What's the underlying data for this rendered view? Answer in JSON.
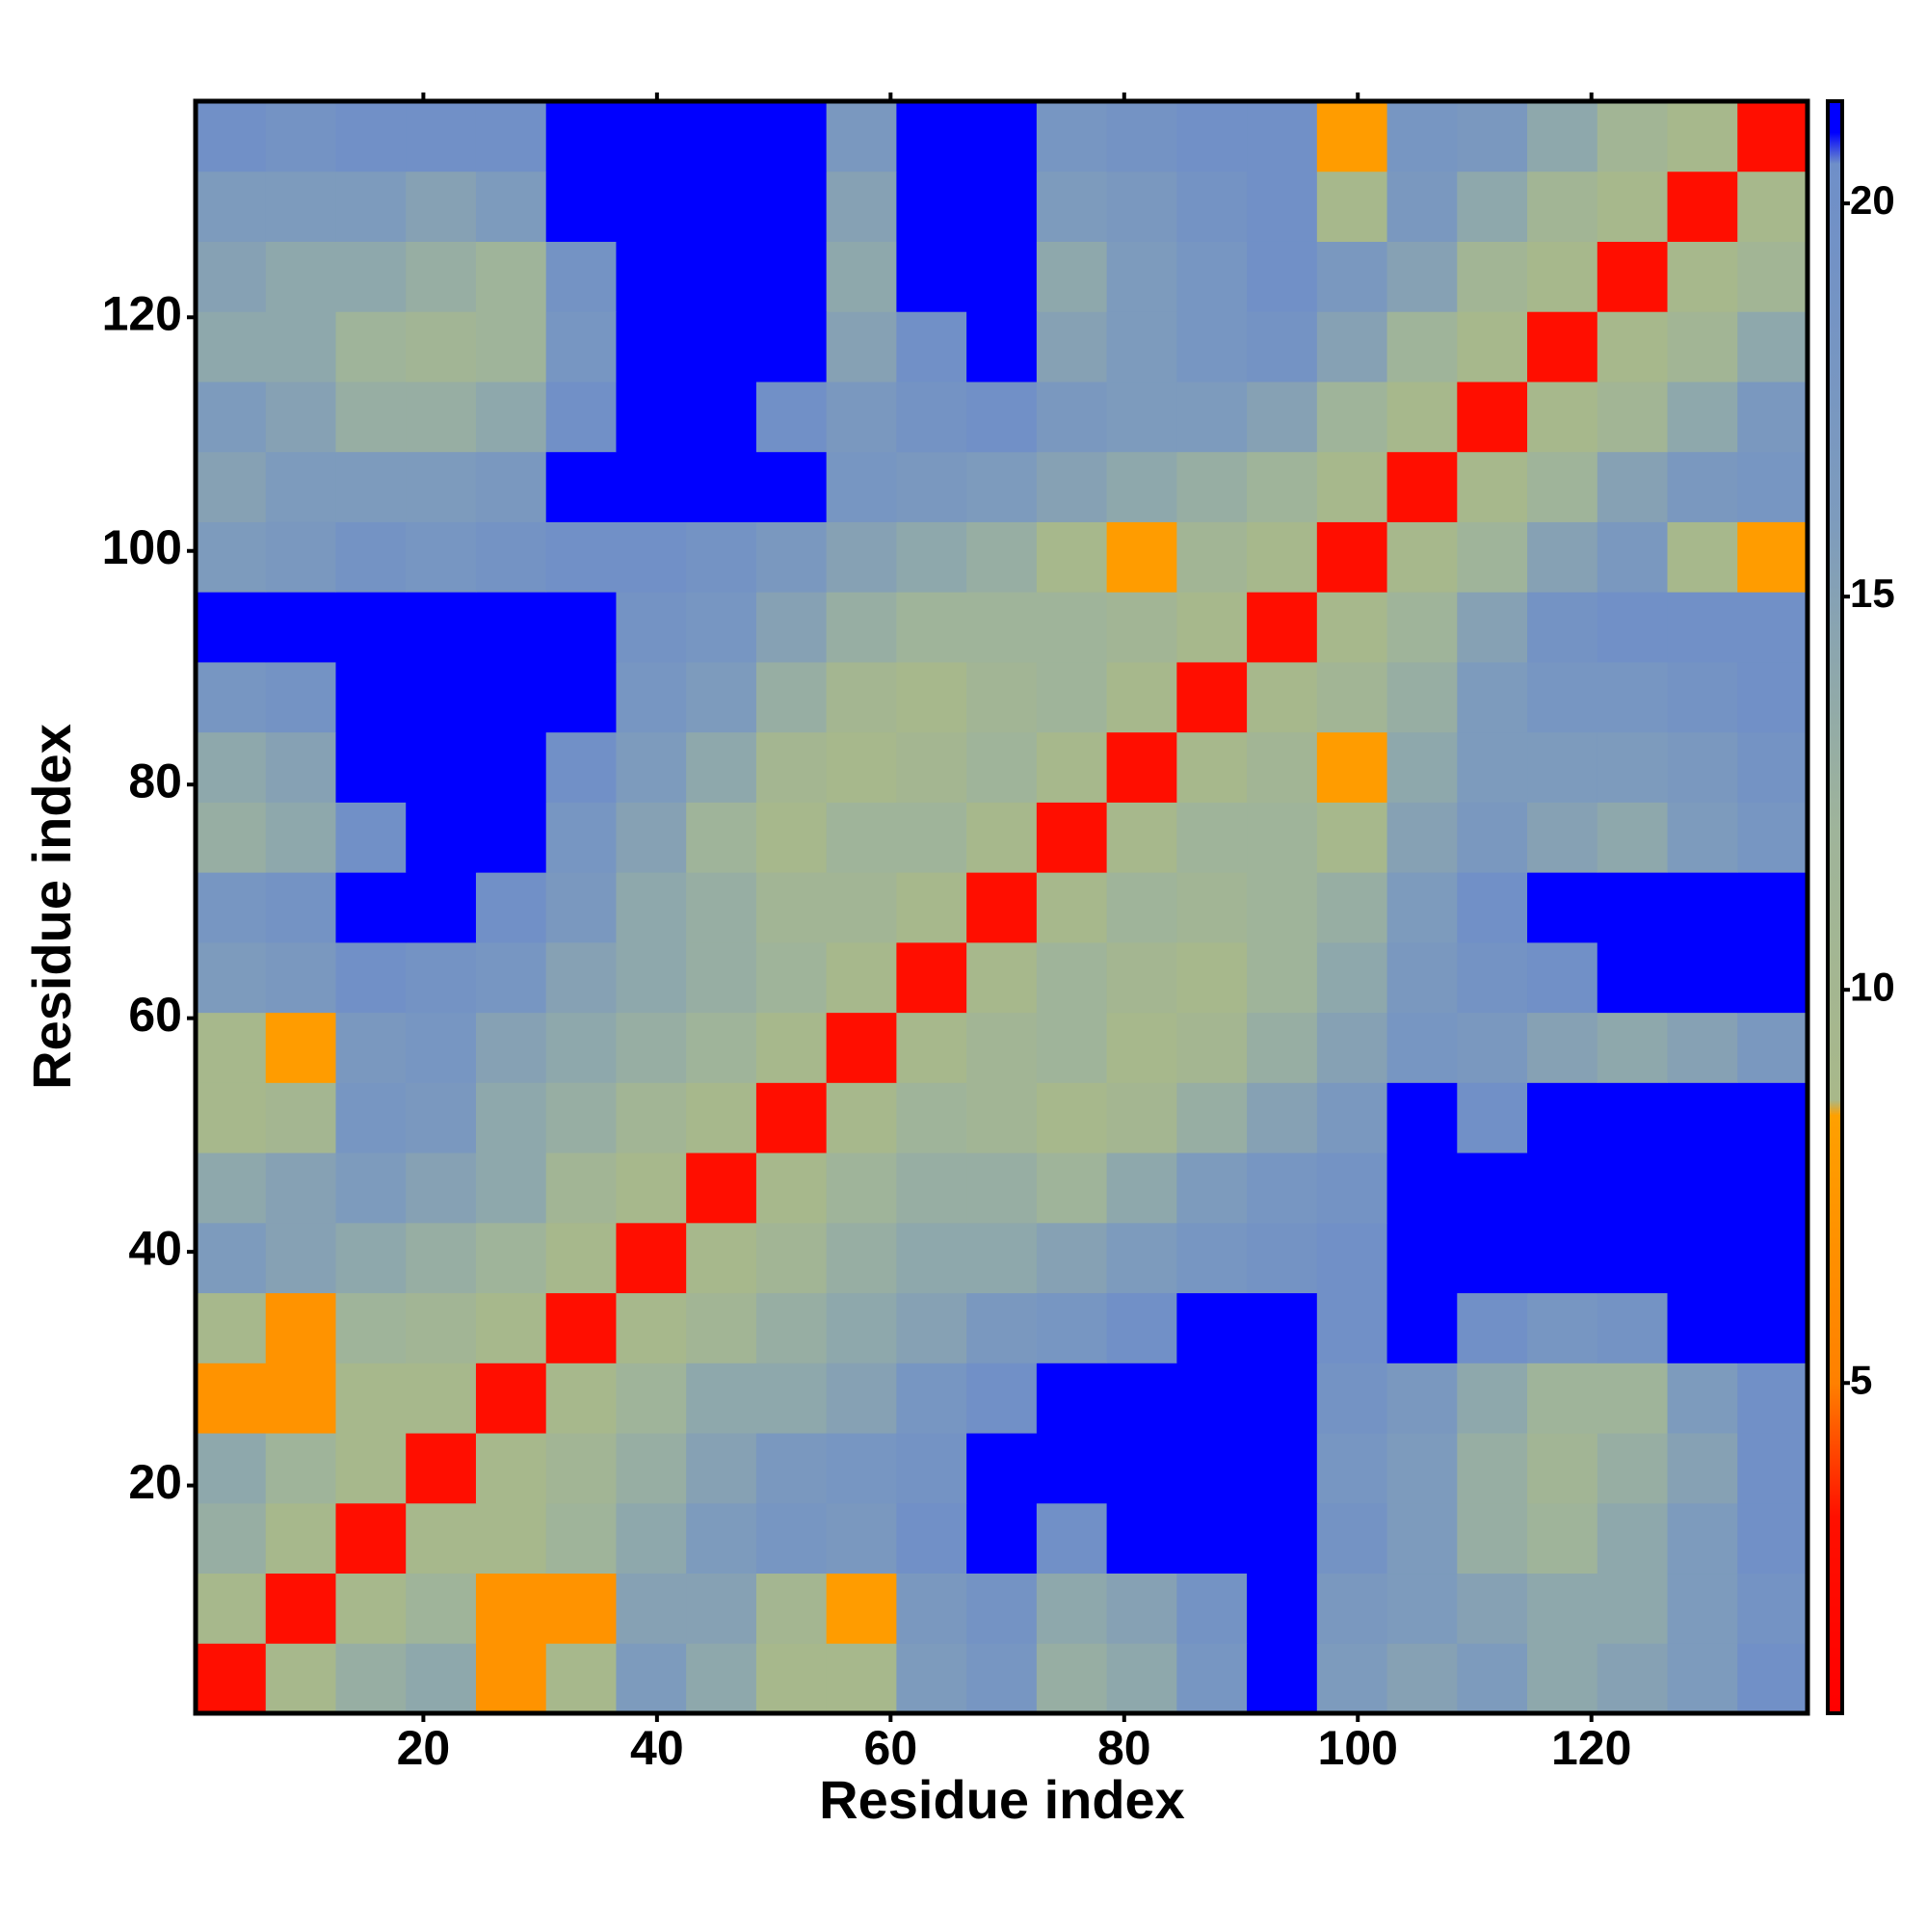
{
  "chart_data": {
    "type": "heatmap",
    "xlabel": "Residue index",
    "ylabel": "Residue index",
    "xlim": [
      0.5,
      138.5
    ],
    "ylim": [
      0.5,
      138.5
    ],
    "xticks": [
      20,
      40,
      60,
      80,
      100,
      120
    ],
    "yticks": [
      20,
      40,
      60,
      80,
      100,
      120
    ],
    "xbins": [
      0.5,
      6.5,
      12.5,
      18.5,
      24.5,
      30.5,
      36.5,
      42.5,
      48.5,
      54.5,
      60.5,
      66.5,
      72.5,
      78.5,
      84.5,
      90.5,
      96.5,
      102.5,
      108.5,
      114.5,
      120.5,
      126.5,
      132.5,
      138.5
    ],
    "ybins": [
      0.5,
      6.5,
      12.5,
      18.5,
      24.5,
      30.5,
      36.5,
      42.5,
      48.5,
      54.5,
      60.5,
      66.5,
      72.5,
      78.5,
      84.5,
      90.5,
      96.5,
      102.5,
      108.5,
      114.5,
      120.5,
      126.5,
      132.5,
      138.5
    ],
    "z": [
      [
        3,
        9,
        13,
        14,
        7,
        9,
        16,
        14,
        9,
        9,
        16,
        18,
        13,
        14,
        18,
        21,
        16,
        15,
        16,
        14,
        15,
        16,
        20
      ],
      [
        9,
        3,
        9,
        12,
        7,
        7,
        15,
        15,
        10,
        8,
        17,
        19,
        14,
        15,
        19,
        21,
        17,
        16,
        15,
        14,
        14,
        16,
        19
      ],
      [
        13,
        9,
        3,
        9,
        9,
        12,
        14,
        16,
        18,
        17,
        20,
        21,
        20,
        21,
        21,
        21,
        19,
        16,
        13,
        12,
        14,
        16,
        20
      ],
      [
        14,
        12,
        9,
        3,
        9,
        11,
        13,
        15,
        17,
        18,
        19,
        21,
        21,
        21,
        21,
        21,
        18,
        16,
        13,
        11,
        13,
        15,
        20
      ],
      [
        7,
        7,
        9,
        9,
        3,
        9,
        12,
        14,
        14,
        15,
        18,
        20,
        21,
        21,
        21,
        21,
        19,
        17,
        14,
        12,
        12,
        16,
        20
      ],
      [
        9,
        7,
        12,
        11,
        9,
        3,
        9,
        11,
        13,
        14,
        15,
        17,
        18,
        20,
        21,
        21,
        20,
        21,
        20,
        18,
        19,
        21,
        21
      ],
      [
        16,
        15,
        14,
        13,
        12,
        9,
        3,
        9,
        11,
        13,
        14,
        14,
        15,
        16,
        18,
        19,
        20,
        21,
        21,
        21,
        21,
        21,
        21
      ],
      [
        14,
        15,
        16,
        15,
        14,
        11,
        9,
        3,
        9,
        12,
        13,
        13,
        12,
        14,
        16,
        18,
        19,
        21,
        21,
        21,
        21,
        21,
        21
      ],
      [
        9,
        10,
        18,
        17,
        14,
        13,
        11,
        9,
        3,
        9,
        12,
        11,
        9,
        10,
        13,
        15,
        17,
        21,
        20,
        21,
        21,
        21,
        21
      ],
      [
        9,
        8,
        17,
        18,
        15,
        14,
        13,
        12,
        9,
        3,
        9,
        11,
        12,
        9,
        10,
        13,
        15,
        18,
        17,
        15,
        14,
        15,
        17
      ],
      [
        16,
        17,
        20,
        19,
        18,
        15,
        14,
        13,
        12,
        9,
        3,
        9,
        12,
        10,
        9,
        12,
        14,
        17,
        19,
        20,
        21,
        21,
        21
      ],
      [
        18,
        19,
        21,
        21,
        20,
        17,
        14,
        13,
        11,
        11,
        9,
        3,
        9,
        12,
        11,
        12,
        13,
        16,
        20,
        21,
        21,
        21,
        21
      ],
      [
        13,
        14,
        20,
        21,
        21,
        18,
        15,
        12,
        9,
        12,
        12,
        9,
        3,
        9,
        12,
        12,
        9,
        15,
        17,
        15,
        14,
        16,
        18
      ],
      [
        14,
        15,
        21,
        21,
        21,
        20,
        16,
        14,
        10,
        9,
        10,
        12,
        9,
        3,
        9,
        11,
        8,
        14,
        16,
        16,
        16,
        17,
        19
      ],
      [
        18,
        19,
        21,
        21,
        21,
        21,
        18,
        16,
        13,
        10,
        9,
        11,
        12,
        9,
        3,
        9,
        11,
        13,
        16,
        18,
        18,
        19,
        20
      ],
      [
        21,
        21,
        21,
        21,
        21,
        21,
        19,
        18,
        15,
        13,
        12,
        12,
        12,
        11,
        9,
        3,
        9,
        12,
        15,
        19,
        20,
        20,
        20
      ],
      [
        16,
        17,
        19,
        18,
        19,
        20,
        20,
        19,
        17,
        15,
        14,
        13,
        9,
        8,
        11,
        9,
        3,
        9,
        12,
        15,
        17,
        9,
        8
      ],
      [
        15,
        16,
        16,
        16,
        17,
        21,
        21,
        21,
        21,
        18,
        17,
        16,
        15,
        14,
        13,
        12,
        9,
        3,
        9,
        12,
        15,
        17,
        18
      ],
      [
        16,
        15,
        13,
        13,
        14,
        20,
        21,
        21,
        20,
        17,
        19,
        20,
        17,
        16,
        16,
        15,
        12,
        9,
        3,
        9,
        11,
        14,
        17
      ],
      [
        14,
        14,
        12,
        11,
        12,
        18,
        21,
        21,
        21,
        15,
        20,
        21,
        15,
        16,
        18,
        19,
        15,
        12,
        9,
        3,
        9,
        11,
        14
      ],
      [
        15,
        14,
        14,
        13,
        12,
        19,
        21,
        21,
        21,
        14,
        21,
        21,
        14,
        16,
        18,
        20,
        17,
        15,
        11,
        9,
        3,
        9,
        11
      ],
      [
        16,
        16,
        16,
        15,
        16,
        21,
        21,
        21,
        21,
        15,
        21,
        21,
        16,
        17,
        19,
        20,
        9,
        17,
        14,
        11,
        9,
        3,
        9
      ],
      [
        20,
        19,
        20,
        20,
        20,
        21,
        21,
        21,
        21,
        17,
        21,
        21,
        18,
        19,
        20,
        20,
        8,
        18,
        17,
        14,
        11,
        9,
        3
      ]
    ],
    "colorbar": {
      "lim": [
        0.8,
        21.3
      ],
      "ticks": [
        5,
        10,
        15,
        20
      ],
      "colorscale": [
        [
          0.8,
          "#ff0000"
        ],
        [
          3.3,
          "#ff1000"
        ],
        [
          5,
          "#ff8000"
        ],
        [
          8.4,
          "#ffa000"
        ],
        [
          8.6,
          "#a8b88a"
        ],
        [
          12,
          "#9fb49a"
        ],
        [
          16,
          "#7d9bbd"
        ],
        [
          20.5,
          "#6f8fc8"
        ],
        [
          20.9,
          "#0000ff"
        ],
        [
          21.3,
          "#0000ff"
        ]
      ]
    }
  }
}
